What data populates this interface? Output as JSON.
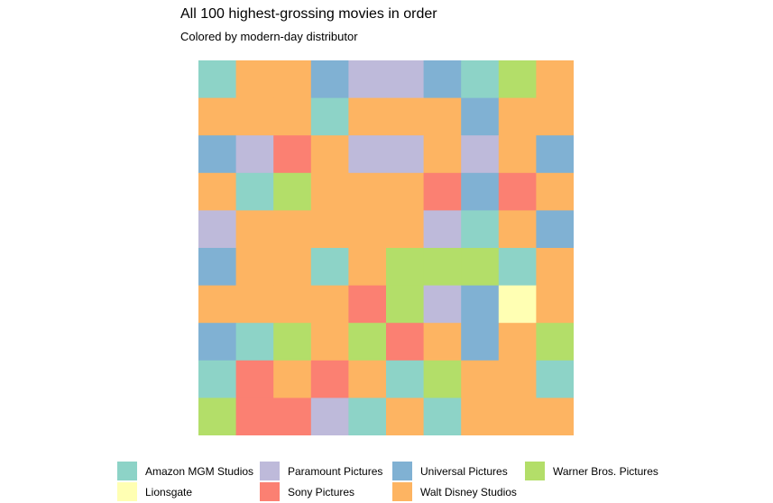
{
  "chart_data": {
    "type": "heatmap",
    "title": "All 100 highest-grossing movies in order",
    "subtitle": "Colored by modern-day distributor",
    "rows": 10,
    "cols": 10,
    "legend": {
      "position": "bottom",
      "entries": [
        {
          "key": "amazon",
          "label": "Amazon MGM Studios",
          "color": "#8DD3C7"
        },
        {
          "key": "paramount",
          "label": "Paramount Pictures",
          "color": "#BEBADA"
        },
        {
          "key": "universal",
          "label": "Universal Pictures",
          "color": "#80B1D3"
        },
        {
          "key": "warner",
          "label": "Warner Bros. Pictures",
          "color": "#B3DE69"
        },
        {
          "key": "lionsgate",
          "label": "Lionsgate",
          "color": "#FFFFB3"
        },
        {
          "key": "sony",
          "label": "Sony Pictures",
          "color": "#FB8072"
        },
        {
          "key": "disney",
          "label": "Walt Disney Studios",
          "color": "#FDB462"
        }
      ]
    },
    "cells": [
      [
        "amazon",
        "disney",
        "disney",
        "universal",
        "paramount",
        "paramount",
        "universal",
        "amazon",
        "warner",
        "disney"
      ],
      [
        "disney",
        "disney",
        "disney",
        "amazon",
        "disney",
        "disney",
        "disney",
        "universal",
        "disney",
        "disney"
      ],
      [
        "universal",
        "paramount",
        "sony",
        "disney",
        "paramount",
        "paramount",
        "disney",
        "paramount",
        "disney",
        "universal"
      ],
      [
        "disney",
        "amazon",
        "warner",
        "disney",
        "disney",
        "disney",
        "sony",
        "universal",
        "sony",
        "disney"
      ],
      [
        "paramount",
        "disney",
        "disney",
        "disney",
        "disney",
        "disney",
        "paramount",
        "amazon",
        "disney",
        "universal"
      ],
      [
        "universal",
        "disney",
        "disney",
        "amazon",
        "disney",
        "warner",
        "warner",
        "warner",
        "amazon",
        "disney"
      ],
      [
        "disney",
        "disney",
        "disney",
        "disney",
        "sony",
        "warner",
        "paramount",
        "universal",
        "lionsgate",
        "disney"
      ],
      [
        "universal",
        "amazon",
        "warner",
        "disney",
        "warner",
        "sony",
        "disney",
        "universal",
        "disney",
        "warner"
      ],
      [
        "amazon",
        "sony",
        "disney",
        "sony",
        "disney",
        "amazon",
        "warner",
        "disney",
        "disney",
        "amazon"
      ],
      [
        "warner",
        "sony",
        "sony",
        "paramount",
        "amazon",
        "disney",
        "amazon",
        "disney",
        "disney",
        "disney"
      ]
    ]
  }
}
